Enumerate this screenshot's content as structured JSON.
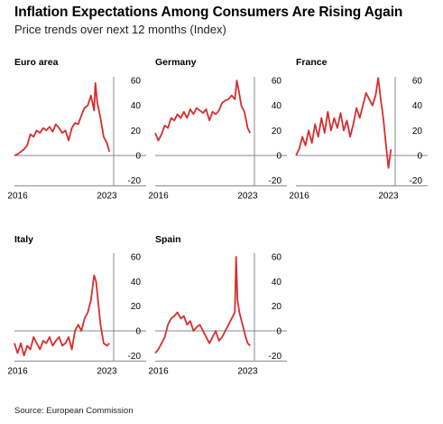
{
  "title": "Inflation Expectations Among Consumers Are Rising Again",
  "subtitle": "Price trends over next 12 months (Index)",
  "source": "Source: European Commission",
  "colors": {
    "line": "#d62e2e",
    "axis": "#8a8a8a"
  },
  "chart_data": [
    {
      "type": "line",
      "title": "Euro area",
      "x": [
        2015.75,
        2016.0,
        2016.25,
        2016.5,
        2016.75,
        2017.0,
        2017.25,
        2017.5,
        2017.75,
        2018.0,
        2018.25,
        2018.5,
        2018.75,
        2019.0,
        2019.25,
        2019.5,
        2019.75,
        2020.0,
        2020.25,
        2020.5,
        2020.75,
        2021.0,
        2021.25,
        2021.5,
        2021.75,
        2022.0,
        2022.1,
        2022.25,
        2022.5,
        2022.75,
        2023.0,
        2023.2
      ],
      "values": [
        0,
        1,
        3,
        5,
        8,
        17,
        15,
        20,
        18,
        22,
        20,
        23,
        19,
        25,
        22,
        18,
        20,
        12,
        22,
        26,
        25,
        32,
        38,
        40,
        48,
        36,
        58,
        42,
        30,
        15,
        10,
        3
      ],
      "yticks": [
        "60",
        "40",
        "20",
        "0",
        "-20"
      ],
      "ylim": [
        -20,
        60
      ],
      "xticks": [
        "2016",
        "2023"
      ]
    },
    {
      "type": "line",
      "title": "Germany",
      "x": [
        2015.75,
        2016.0,
        2016.25,
        2016.5,
        2016.75,
        2017.0,
        2017.25,
        2017.5,
        2017.75,
        2018.0,
        2018.25,
        2018.5,
        2018.75,
        2019.0,
        2019.25,
        2019.5,
        2019.75,
        2020.0,
        2020.25,
        2020.5,
        2020.75,
        2021.0,
        2021.25,
        2021.5,
        2021.75,
        2022.0,
        2022.15,
        2022.3,
        2022.5,
        2022.75,
        2023.0,
        2023.2
      ],
      "values": [
        18,
        12,
        17,
        24,
        22,
        30,
        28,
        33,
        30,
        35,
        30,
        37,
        33,
        38,
        36,
        34,
        37,
        28,
        35,
        33,
        36,
        42,
        44,
        45,
        48,
        45,
        60,
        52,
        40,
        35,
        22,
        18
      ],
      "yticks": [
        "60",
        "40",
        "20",
        "0",
        "-20"
      ],
      "ylim": [
        -20,
        60
      ],
      "xticks": [
        "2016",
        "2023"
      ]
    },
    {
      "type": "line",
      "title": "France",
      "x": [
        2015.75,
        2016.0,
        2016.25,
        2016.5,
        2016.75,
        2017.0,
        2017.25,
        2017.5,
        2017.75,
        2018.0,
        2018.25,
        2018.5,
        2018.75,
        2019.0,
        2019.25,
        2019.5,
        2019.75,
        2020.0,
        2020.25,
        2020.5,
        2020.75,
        2021.0,
        2021.25,
        2021.5,
        2021.75,
        2022.0,
        2022.2,
        2022.4,
        2022.6,
        2022.8,
        2023.0,
        2023.2
      ],
      "values": [
        0,
        5,
        15,
        8,
        20,
        10,
        25,
        15,
        30,
        18,
        35,
        20,
        30,
        22,
        34,
        20,
        28,
        15,
        25,
        38,
        30,
        40,
        50,
        45,
        40,
        48,
        62,
        45,
        30,
        10,
        -10,
        5
      ],
      "yticks": [
        "60",
        "40",
        "20",
        "0",
        "-20"
      ],
      "ylim": [
        -20,
        60
      ],
      "xticks": [
        "2016",
        "2023"
      ]
    },
    {
      "type": "line",
      "title": "Italy",
      "x": [
        2015.75,
        2016.0,
        2016.25,
        2016.5,
        2016.75,
        2017.0,
        2017.25,
        2017.5,
        2017.75,
        2018.0,
        2018.25,
        2018.5,
        2018.75,
        2019.0,
        2019.25,
        2019.5,
        2019.75,
        2020.0,
        2020.25,
        2020.5,
        2020.75,
        2021.0,
        2021.25,
        2021.5,
        2021.75,
        2022.0,
        2022.15,
        2022.3,
        2022.5,
        2022.75,
        2023.0,
        2023.2
      ],
      "values": [
        -10,
        -18,
        -10,
        -20,
        -12,
        -15,
        -5,
        -10,
        -15,
        -8,
        -10,
        -5,
        -12,
        -8,
        -5,
        -12,
        -10,
        -5,
        -15,
        0,
        5,
        0,
        10,
        15,
        25,
        45,
        40,
        25,
        5,
        -10,
        -12,
        -10
      ],
      "yticks": [
        "60",
        "40",
        "20",
        "0",
        "-20"
      ],
      "ylim": [
        -20,
        60
      ],
      "xticks": [
        "2016",
        "2023"
      ]
    },
    {
      "type": "line",
      "title": "Spain",
      "x": [
        2015.75,
        2016.0,
        2016.25,
        2016.5,
        2016.75,
        2017.0,
        2017.25,
        2017.5,
        2017.75,
        2018.0,
        2018.25,
        2018.5,
        2018.75,
        2019.0,
        2019.25,
        2019.5,
        2019.75,
        2020.0,
        2020.25,
        2020.5,
        2020.75,
        2021.0,
        2021.25,
        2021.5,
        2021.75,
        2022.0,
        2022.1,
        2022.2,
        2022.35,
        2022.6,
        2022.85,
        2023.0,
        2023.2
      ],
      "values": [
        -18,
        -15,
        -10,
        -5,
        5,
        10,
        12,
        15,
        10,
        12,
        5,
        8,
        0,
        3,
        5,
        0,
        -5,
        -10,
        -5,
        0,
        -8,
        -5,
        0,
        5,
        10,
        15,
        60,
        25,
        15,
        5,
        -5,
        -10,
        -12
      ],
      "yticks": [
        "60",
        "40",
        "20",
        "0",
        "-20"
      ],
      "ylim": [
        -20,
        60
      ],
      "xticks": [
        "2016",
        "2023"
      ]
    }
  ]
}
